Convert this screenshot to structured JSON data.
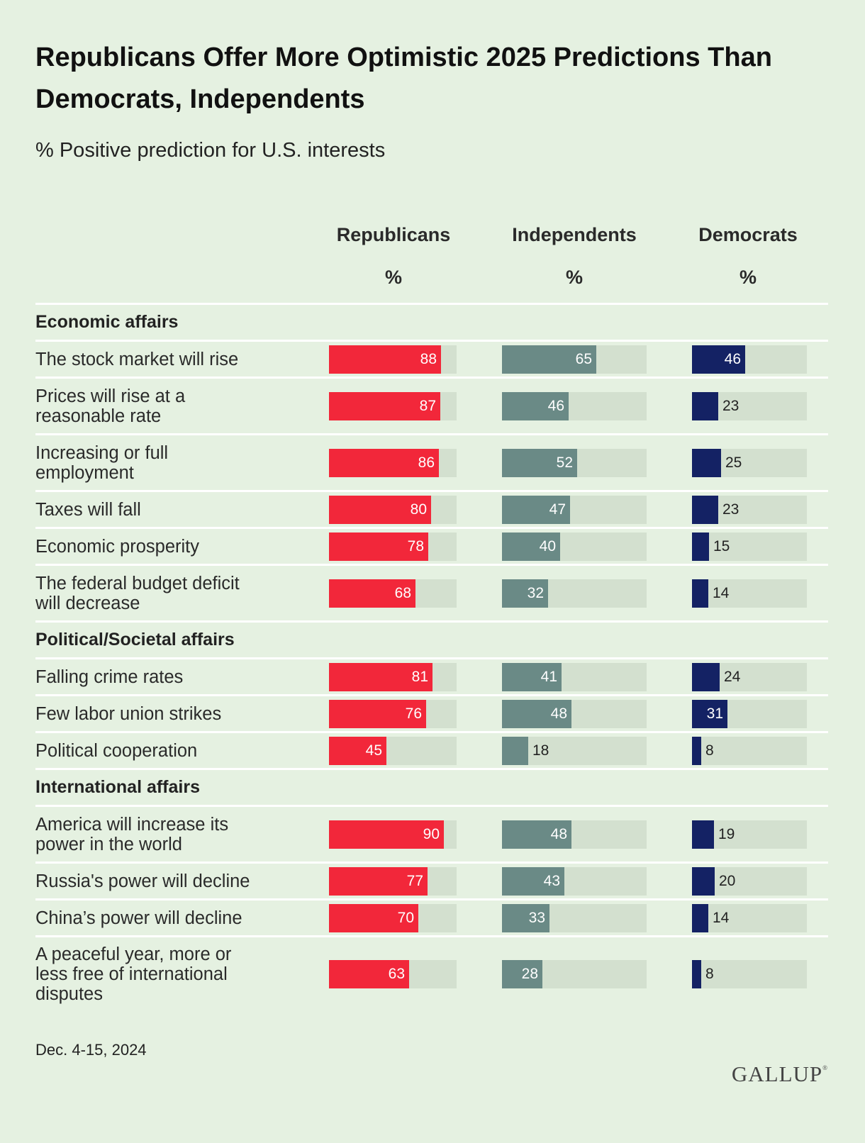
{
  "title": "Republicans Offer More Optimistic 2025 Predictions Than Democrats, Independents",
  "subtitle": "% Positive prediction for U.S. interests",
  "footer": {
    "date": "Dec. 4-15, 2024",
    "logo": "GALLUP"
  },
  "colors": {
    "background": "#e5f1e1",
    "track": "#d3e0cf",
    "Republicans": "#f2273a",
    "Independents": "#6a8a86",
    "Democrats": "#142264"
  },
  "chart_data": {
    "type": "bar",
    "orientation": "horizontal",
    "title": "Republicans Offer More Optimistic 2025 Predictions Than Democrats, Independents",
    "subtitle": "% Positive prediction for U.S. interests",
    "xlim": [
      0,
      100
    ],
    "series": [
      {
        "name": "Republicans",
        "unit": "%"
      },
      {
        "name": "Independents",
        "unit": "%"
      },
      {
        "name": "Democrats",
        "unit": "%"
      }
    ],
    "groups": [
      {
        "name": "Economic affairs",
        "rows": [
          {
            "label": "The stock market will rise",
            "values": [
              88,
              65,
              46
            ]
          },
          {
            "label": "Prices will rise at a reasonable rate",
            "values": [
              87,
              46,
              23
            ]
          },
          {
            "label": "Increasing or full employment",
            "values": [
              86,
              52,
              25
            ]
          },
          {
            "label": "Taxes will fall",
            "values": [
              80,
              47,
              23
            ]
          },
          {
            "label": "Economic prosperity",
            "values": [
              78,
              40,
              15
            ]
          },
          {
            "label": "The federal budget deficit will decrease",
            "values": [
              68,
              32,
              14
            ]
          }
        ]
      },
      {
        "name": "Political/Societal affairs",
        "rows": [
          {
            "label": "Falling crime rates",
            "values": [
              81,
              41,
              24
            ]
          },
          {
            "label": "Few labor union strikes",
            "values": [
              76,
              48,
              31
            ]
          },
          {
            "label": "Political cooperation",
            "values": [
              45,
              18,
              8
            ]
          }
        ]
      },
      {
        "name": "International affairs",
        "rows": [
          {
            "label": "America will increase its power in the world",
            "values": [
              90,
              48,
              19
            ]
          },
          {
            "label": "Russia's power will decline",
            "values": [
              77,
              43,
              20
            ]
          },
          {
            "label": "China’s power will decline",
            "values": [
              70,
              33,
              14
            ]
          },
          {
            "label": "A peaceful year, more or less free of international disputes",
            "values": [
              63,
              28,
              8
            ]
          }
        ]
      }
    ]
  }
}
